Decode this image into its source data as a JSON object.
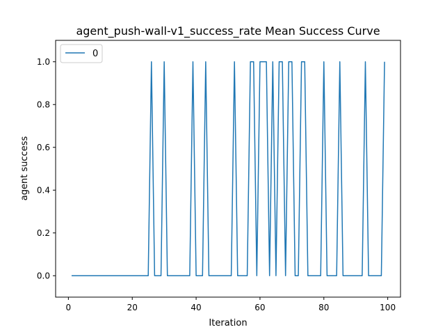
{
  "chart_data": {
    "type": "line",
    "title": "agent_push-wall-v1_success_rate Mean Success Curve",
    "xlabel": "Iteration",
    "ylabel": "agent success",
    "xlim": [
      -4,
      104
    ],
    "ylim": [
      -0.1,
      1.1
    ],
    "xticks": [
      0,
      20,
      40,
      60,
      80,
      100
    ],
    "yticks": [
      0.0,
      0.2,
      0.4,
      0.6,
      0.8,
      1.0
    ],
    "xtick_labels": [
      "0",
      "20",
      "40",
      "60",
      "80",
      "100"
    ],
    "ytick_labels": [
      "0.0",
      "0.2",
      "0.4",
      "0.6",
      "0.8",
      "1.0"
    ],
    "grid": false,
    "legend_position": "upper-left",
    "series": [
      {
        "name": "0",
        "color": "#1f77b4",
        "x": [
          1,
          2,
          3,
          4,
          5,
          6,
          7,
          8,
          9,
          10,
          11,
          12,
          13,
          14,
          15,
          16,
          17,
          18,
          19,
          20,
          21,
          22,
          23,
          24,
          25,
          26,
          27,
          28,
          29,
          30,
          31,
          32,
          33,
          34,
          35,
          36,
          37,
          38,
          39,
          40,
          41,
          42,
          43,
          44,
          45,
          46,
          47,
          48,
          49,
          50,
          51,
          52,
          53,
          54,
          55,
          56,
          57,
          58,
          59,
          60,
          61,
          62,
          63,
          64,
          65,
          66,
          67,
          68,
          69,
          70,
          71,
          72,
          73,
          74,
          75,
          76,
          77,
          78,
          79,
          80,
          81,
          82,
          83,
          84,
          85,
          86,
          87,
          88,
          89,
          90,
          91,
          92,
          93,
          94,
          95,
          96,
          97,
          98,
          99
        ],
        "y": [
          0,
          0,
          0,
          0,
          0,
          0,
          0,
          0,
          0,
          0,
          0,
          0,
          0,
          0,
          0,
          0,
          0,
          0,
          0,
          0,
          0,
          0,
          0,
          0,
          0,
          1,
          0,
          0,
          0,
          1,
          0,
          0,
          0,
          0,
          0,
          0,
          0,
          0,
          1,
          0,
          0,
          0,
          1,
          0,
          0,
          0,
          0,
          0,
          0,
          0,
          0,
          1,
          0,
          0,
          0,
          0,
          1,
          1,
          0,
          1,
          1,
          1,
          0,
          1,
          0,
          1,
          1,
          0,
          1,
          1,
          0,
          0,
          1,
          1,
          0,
          0,
          0,
          0,
          0,
          1,
          0,
          0,
          0,
          0,
          1,
          0,
          0,
          0,
          0,
          0,
          0,
          0,
          1,
          0,
          0,
          0,
          0,
          0,
          1
        ]
      }
    ]
  }
}
